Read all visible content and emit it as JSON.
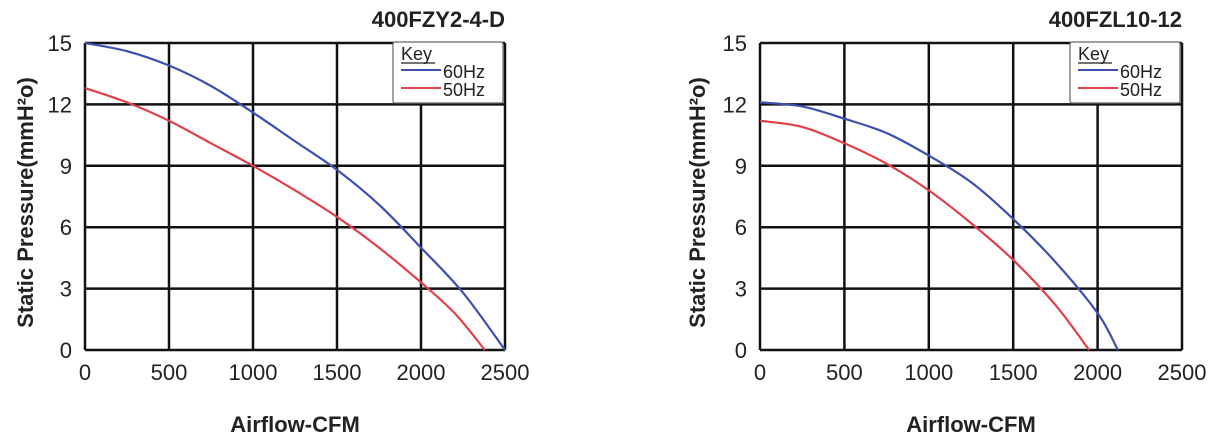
{
  "chart_data": [
    {
      "type": "line",
      "title": "400FZY2-4-D",
      "xlabel": "Airflow-CFM",
      "ylabel": "Static Pressure(mmH²o)",
      "xlim": [
        0,
        2500
      ],
      "ylim": [
        0,
        15
      ],
      "xticks": [
        "0",
        "500",
        "1000",
        "1500",
        "2000",
        "2500"
      ],
      "yticks": [
        "0",
        "3",
        "6",
        "9",
        "12",
        "15"
      ],
      "grid": true,
      "legend": {
        "title": "Key",
        "placement": "top-right"
      },
      "series": [
        {
          "name": "60Hz",
          "color": "#3f4fb0",
          "x": [
            0,
            250,
            500,
            750,
            1000,
            1250,
            1500,
            1750,
            2000,
            2250,
            2500
          ],
          "y": [
            15.0,
            14.6,
            13.9,
            12.9,
            11.6,
            10.2,
            8.8,
            7.1,
            5.0,
            2.8,
            0.0
          ]
        },
        {
          "name": "50Hz",
          "color": "#e0404a",
          "x": [
            0,
            250,
            500,
            750,
            1000,
            1250,
            1500,
            1750,
            2000,
            2200,
            2380
          ],
          "y": [
            12.8,
            12.1,
            11.2,
            10.1,
            9.0,
            7.8,
            6.5,
            5.0,
            3.3,
            1.8,
            0.0
          ]
        }
      ]
    },
    {
      "type": "line",
      "title": "400FZL10-12",
      "xlabel": "Airflow-CFM",
      "ylabel": "Static Pressure(mmH²o)",
      "xlim": [
        0,
        2500
      ],
      "ylim": [
        0,
        15
      ],
      "xticks": [
        "0",
        "500",
        "1000",
        "1500",
        "2000",
        "2500"
      ],
      "yticks": [
        "0",
        "3",
        "6",
        "9",
        "12",
        "15"
      ],
      "grid": true,
      "legend": {
        "title": "Key",
        "placement": "top-right"
      },
      "series": [
        {
          "name": "60Hz",
          "color": "#3f4fb0",
          "x": [
            0,
            250,
            500,
            750,
            1000,
            1250,
            1500,
            1750,
            2000,
            2120
          ],
          "y": [
            12.1,
            11.9,
            11.3,
            10.6,
            9.5,
            8.2,
            6.4,
            4.3,
            1.8,
            0.0
          ]
        },
        {
          "name": "50Hz",
          "color": "#e0404a",
          "x": [
            0,
            250,
            500,
            750,
            1000,
            1250,
            1500,
            1750,
            1950
          ],
          "y": [
            11.2,
            10.9,
            10.1,
            9.1,
            7.8,
            6.2,
            4.4,
            2.2,
            0.0
          ]
        }
      ]
    }
  ]
}
